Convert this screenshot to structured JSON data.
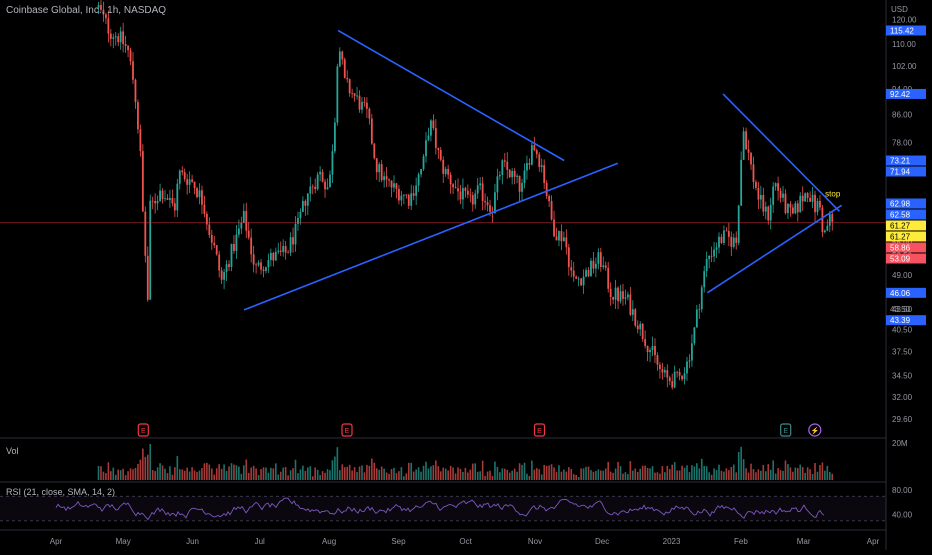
{
  "header": {
    "symbol_line": "Coinbase Global, Inc., 1h, NASDAQ",
    "currency": "USD"
  },
  "colors": {
    "background": "#000000",
    "candle_up": "#26a69a",
    "candle_down": "#ef5350",
    "trendline": "#2962ff",
    "rsi_line": "#7e57c2",
    "price_line": "#f23645",
    "label_blue": "#2962ff",
    "label_yellow": "#ffeb3b",
    "label_red": "#f7525f"
  },
  "chart_data": {
    "type": "candlestick",
    "title": "Coinbase Global, Inc., 1h, NASDAQ",
    "y_scale": "log",
    "ylim": [
      28,
      124
    ],
    "xlim": [
      "2022-04-01",
      "2023-04-01"
    ],
    "price_ticks": [
      "120.00",
      "110.00",
      "102.00",
      "94.00",
      "86.00",
      "78.00",
      "70.00",
      "62.50",
      "55.00",
      "52.50",
      "49.00",
      "43.50",
      "40.50",
      "37.50",
      "34.50",
      "32.00",
      "29.60"
    ],
    "x_ticks": [
      {
        "label": "Apr",
        "date": "2022-04-01"
      },
      {
        "label": "May",
        "date": "2022-05-01"
      },
      {
        "label": "Jun",
        "date": "2022-06-01"
      },
      {
        "label": "Jul",
        "date": "2022-07-01"
      },
      {
        "label": "Aug",
        "date": "2022-08-01"
      },
      {
        "label": "Sep",
        "date": "2022-09-01"
      },
      {
        "label": "Oct",
        "date": "2022-10-01"
      },
      {
        "label": "Nov",
        "date": "2022-11-01"
      },
      {
        "label": "Dec",
        "date": "2022-12-01"
      },
      {
        "label": "2023",
        "date": "2023-01-01"
      },
      {
        "label": "Feb",
        "date": "2023-02-01"
      },
      {
        "label": "Mar",
        "date": "2023-03-01"
      },
      {
        "label": "Apr",
        "date": "2023-04-01"
      }
    ],
    "price_path": [
      [
        "2022-04-20",
        125
      ],
      [
        "2022-04-25",
        115
      ],
      [
        "2022-04-29",
        113
      ],
      [
        "2022-05-03",
        108
      ],
      [
        "2022-05-06",
        95
      ],
      [
        "2022-05-09",
        72
      ],
      [
        "2022-05-10",
        58
      ],
      [
        "2022-05-11",
        52
      ],
      [
        "2022-05-12",
        45
      ],
      [
        "2022-05-13",
        62
      ],
      [
        "2022-05-18",
        66
      ],
      [
        "2022-05-24",
        62
      ],
      [
        "2022-05-26",
        70
      ],
      [
        "2022-06-01",
        68
      ],
      [
        "2022-06-06",
        63
      ],
      [
        "2022-06-08",
        58
      ],
      [
        "2022-06-10",
        55
      ],
      [
        "2022-06-14",
        48
      ],
      [
        "2022-06-20",
        55
      ],
      [
        "2022-06-24",
        60
      ],
      [
        "2022-06-29",
        50
      ],
      [
        "2022-07-06",
        52
      ],
      [
        "2022-07-13",
        53
      ],
      [
        "2022-07-18",
        58
      ],
      [
        "2022-07-22",
        65
      ],
      [
        "2022-07-28",
        70
      ],
      [
        "2022-08-01",
        66
      ],
      [
        "2022-08-04",
        88
      ],
      [
        "2022-08-05",
        112
      ],
      [
        "2022-08-08",
        96
      ],
      [
        "2022-08-12",
        92
      ],
      [
        "2022-08-18",
        86
      ],
      [
        "2022-08-22",
        72
      ],
      [
        "2022-08-26",
        68
      ],
      [
        "2022-08-31",
        66
      ],
      [
        "2022-09-06",
        64
      ],
      [
        "2022-09-12",
        72
      ],
      [
        "2022-09-15",
        84
      ],
      [
        "2022-09-20",
        72
      ],
      [
        "2022-09-27",
        66
      ],
      [
        "2022-10-03",
        63
      ],
      [
        "2022-10-07",
        66
      ],
      [
        "2022-10-13",
        62
      ],
      [
        "2022-10-17",
        72
      ],
      [
        "2022-10-21",
        70
      ],
      [
        "2022-10-26",
        66
      ],
      [
        "2022-10-31",
        78
      ],
      [
        "2022-11-04",
        72
      ],
      [
        "2022-11-08",
        60
      ],
      [
        "2022-11-10",
        57
      ],
      [
        "2022-11-14",
        56
      ],
      [
        "2022-11-18",
        48
      ],
      [
        "2022-11-23",
        49
      ],
      [
        "2022-11-30",
        52
      ],
      [
        "2022-12-05",
        46
      ],
      [
        "2022-12-12",
        45
      ],
      [
        "2022-12-19",
        40
      ],
      [
        "2022-12-27",
        35
      ],
      [
        "2022-12-30",
        34
      ],
      [
        "2023-01-04",
        34
      ],
      [
        "2023-01-08",
        36
      ],
      [
        "2023-01-11",
        40
      ],
      [
        "2023-01-13",
        44
      ],
      [
        "2023-01-17",
        52
      ],
      [
        "2023-01-20",
        54
      ],
      [
        "2023-01-24",
        56
      ],
      [
        "2023-01-30",
        55
      ],
      [
        "2023-02-02",
        82
      ],
      [
        "2023-02-06",
        70
      ],
      [
        "2023-02-09",
        64
      ],
      [
        "2023-02-13",
        60
      ],
      [
        "2023-02-16",
        68
      ],
      [
        "2023-02-21",
        62
      ],
      [
        "2023-02-24",
        60
      ],
      [
        "2023-02-28",
        64
      ],
      [
        "2023-03-03",
        66
      ],
      [
        "2023-03-06",
        62
      ],
      [
        "2023-03-08",
        63
      ],
      [
        "2023-03-10",
        56
      ],
      [
        "2023-03-13",
        60
      ],
      [
        "2023-03-14",
        58.8
      ]
    ],
    "trendlines": [
      {
        "from": [
          "2022-08-05",
          115.42
        ],
        "to": [
          "2022-11-14",
          73.21
        ]
      },
      {
        "from": [
          "2022-06-24",
          43.39
        ],
        "to": [
          "2022-12-08",
          72.5
        ]
      },
      {
        "from": [
          "2023-01-24",
          92.42
        ],
        "to": [
          "2023-03-17",
          61.27
        ]
      },
      {
        "from": [
          "2023-01-17",
          46.06
        ],
        "to": [
          "2023-03-18",
          62.58
        ]
      }
    ],
    "price_labels": [
      {
        "text": "115.42",
        "value": 115.42,
        "style": "blue"
      },
      {
        "text": "92.42",
        "value": 92.42,
        "style": "blue"
      },
      {
        "text": "73.21",
        "value": 73.21,
        "style": "blue"
      },
      {
        "text": "71.94",
        "value": 71.94,
        "style": "blue"
      },
      {
        "text": "62.98",
        "value": 62.98,
        "style": "blue"
      },
      {
        "text": "62.58",
        "value": 62.58,
        "style": "blue"
      },
      {
        "text": "61.27",
        "value": 61.27,
        "style": "yellow"
      },
      {
        "text": "61.27",
        "value": 61.27,
        "style": "yellow"
      },
      {
        "text": "58.86",
        "value": 58.86,
        "style": "red"
      },
      {
        "text": "53.09",
        "value": 53.09,
        "style": "red"
      },
      {
        "text": "46.06",
        "value": 46.06,
        "style": "blue"
      },
      {
        "text": "43.50",
        "value": 43.5,
        "style": "plain"
      },
      {
        "text": "43.39",
        "value": 43.39,
        "style": "blue"
      }
    ],
    "current_price": 58.86,
    "annotations": [
      {
        "text": "stop",
        "date": "2023-03-14",
        "value": 64.5
      }
    ],
    "events": [
      {
        "icon": "E",
        "date": "2022-05-10",
        "kind": "earnings"
      },
      {
        "icon": "E",
        "date": "2022-08-09",
        "kind": "earnings"
      },
      {
        "icon": "E",
        "date": "2022-11-03",
        "kind": "earnings"
      },
      {
        "icon": "E",
        "date": "2023-02-21",
        "kind": "earnings-upcoming"
      },
      {
        "icon": "⚡",
        "date": "2023-03-06",
        "kind": "news"
      }
    ],
    "volume": {
      "label": "Vol",
      "axis_max_label": "20M"
    },
    "rsi": {
      "label": "RSI (21, close, SMA, 14, 2)",
      "ticks": [
        "80.00",
        "40.00"
      ],
      "range": [
        20,
        90
      ]
    }
  }
}
